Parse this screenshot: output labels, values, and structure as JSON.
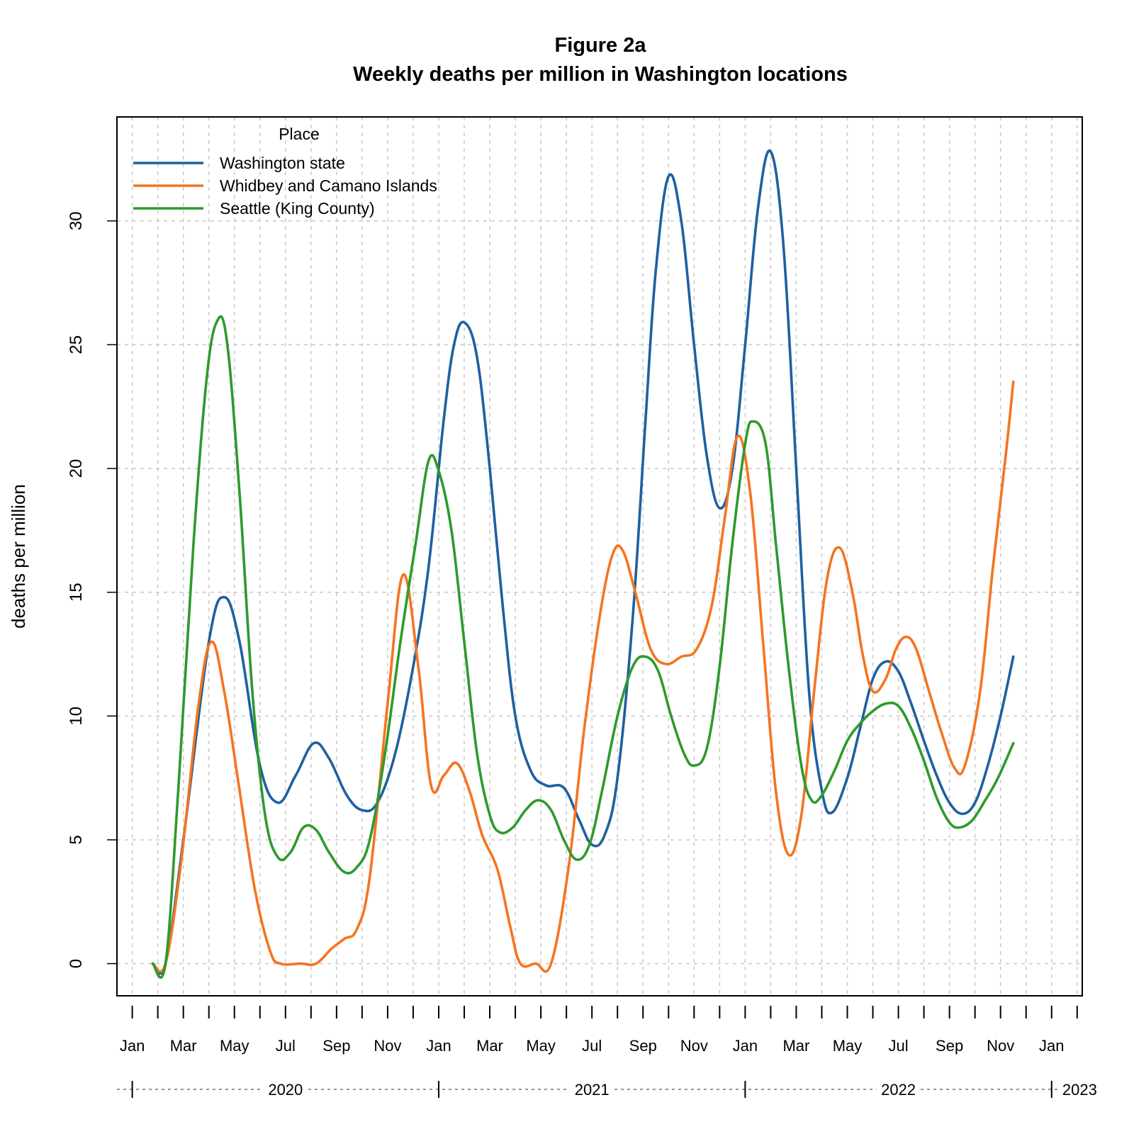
{
  "chart_data": {
    "type": "line",
    "title": "Figure 2a",
    "subtitle": "Weekly deaths per million in Washington locations",
    "xlabel": "",
    "ylabel": "deaths per million",
    "ylim": [
      -1.3,
      34.2
    ],
    "yticks": [
      0,
      5,
      10,
      15,
      20,
      25,
      30
    ],
    "x_unit": "month (0 = Jan 2020)",
    "xlim": [
      -0.6,
      37.2
    ],
    "month_ticks": [
      0,
      1,
      2,
      3,
      4,
      5,
      6,
      7,
      8,
      9,
      10,
      11,
      12,
      13,
      14,
      15,
      16,
      17,
      18,
      19,
      20,
      21,
      22,
      23,
      24,
      25,
      26,
      27,
      28,
      29,
      30,
      31,
      32,
      33,
      34,
      35,
      36,
      37
    ],
    "month_labels": [
      {
        "m": 0,
        "label": "Jan"
      },
      {
        "m": 2,
        "label": "Mar"
      },
      {
        "m": 4,
        "label": "May"
      },
      {
        "m": 6,
        "label": "Jul"
      },
      {
        "m": 8,
        "label": "Sep"
      },
      {
        "m": 10,
        "label": "Nov"
      },
      {
        "m": 12,
        "label": "Jan"
      },
      {
        "m": 14,
        "label": "Mar"
      },
      {
        "m": 16,
        "label": "May"
      },
      {
        "m": 18,
        "label": "Jul"
      },
      {
        "m": 20,
        "label": "Sep"
      },
      {
        "m": 22,
        "label": "Nov"
      },
      {
        "m": 24,
        "label": "Jan"
      },
      {
        "m": 26,
        "label": "Mar"
      },
      {
        "m": 28,
        "label": "May"
      },
      {
        "m": 30,
        "label": "Jul"
      },
      {
        "m": 32,
        "label": "Sep"
      },
      {
        "m": 34,
        "label": "Nov"
      },
      {
        "m": 36,
        "label": "Jan"
      }
    ],
    "year_labels": [
      {
        "label": "2020",
        "m": 6
      },
      {
        "label": "2021",
        "m": 18
      },
      {
        "label": "2022",
        "m": 30
      },
      {
        "label": "2023",
        "m": 37.1
      }
    ],
    "year_boundaries": [
      0,
      12,
      24,
      36
    ],
    "grid": true,
    "legend": {
      "title": "Place",
      "position": "top-left"
    },
    "series": [
      {
        "name": "Washington state",
        "color": "#1f5fa0",
        "points": [
          [
            0.8,
            0
          ],
          [
            1.3,
            0
          ],
          [
            2,
            5
          ],
          [
            3,
            13
          ],
          [
            3.6,
            14.8
          ],
          [
            4.2,
            13
          ],
          [
            5,
            8
          ],
          [
            5.7,
            6.5
          ],
          [
            6.4,
            7.6
          ],
          [
            7.1,
            8.9
          ],
          [
            7.7,
            8.3
          ],
          [
            8.4,
            6.8
          ],
          [
            9,
            6.2
          ],
          [
            9.6,
            6.5
          ],
          [
            10.3,
            8.5
          ],
          [
            11,
            12
          ],
          [
            11.6,
            16
          ],
          [
            12.2,
            22
          ],
          [
            12.6,
            25
          ],
          [
            13,
            25.9
          ],
          [
            13.5,
            24.5
          ],
          [
            14,
            20
          ],
          [
            14.5,
            14.5
          ],
          [
            15,
            10
          ],
          [
            15.6,
            7.8
          ],
          [
            16.2,
            7.2
          ],
          [
            16.9,
            7.1
          ],
          [
            17.5,
            5.8
          ],
          [
            18,
            4.8
          ],
          [
            18.5,
            5.2
          ],
          [
            19,
            7.5
          ],
          [
            19.6,
            14
          ],
          [
            20.1,
            22
          ],
          [
            20.5,
            28
          ],
          [
            21,
            31.8
          ],
          [
            21.5,
            30
          ],
          [
            22,
            25
          ],
          [
            22.5,
            20.5
          ],
          [
            23,
            18.4
          ],
          [
            23.5,
            20
          ],
          [
            24,
            25
          ],
          [
            24.5,
            30.5
          ],
          [
            25,
            32.8
          ],
          [
            25.5,
            29
          ],
          [
            26,
            20
          ],
          [
            26.5,
            11
          ],
          [
            27,
            7
          ],
          [
            27.4,
            6.1
          ],
          [
            28,
            7.5
          ],
          [
            28.5,
            9.5
          ],
          [
            29,
            11.5
          ],
          [
            29.5,
            12.2
          ],
          [
            30,
            11.8
          ],
          [
            30.5,
            10.5
          ],
          [
            31,
            9
          ],
          [
            31.5,
            7.6
          ],
          [
            32,
            6.5
          ],
          [
            32.5,
            6.05
          ],
          [
            33,
            6.5
          ],
          [
            33.5,
            8
          ],
          [
            34,
            10
          ],
          [
            34.5,
            12.4
          ]
        ]
      },
      {
        "name": "Whidbey and Camano Islands",
        "color": "#f5741f",
        "points": [
          [
            0.8,
            0
          ],
          [
            1.3,
            0
          ],
          [
            1.9,
            4
          ],
          [
            2.6,
            10.5
          ],
          [
            3.1,
            13
          ],
          [
            3.6,
            11
          ],
          [
            4.2,
            7
          ],
          [
            4.8,
            3
          ],
          [
            5.4,
            0.5
          ],
          [
            5.8,
            0
          ],
          [
            6.6,
            0
          ],
          [
            7.2,
            0
          ],
          [
            7.8,
            0.6
          ],
          [
            8.3,
            1
          ],
          [
            8.8,
            1.4
          ],
          [
            9.3,
            3.5
          ],
          [
            10,
            10.5
          ],
          [
            10.6,
            15.7
          ],
          [
            11.2,
            12
          ],
          [
            11.7,
            7.2
          ],
          [
            12.2,
            7.6
          ],
          [
            12.7,
            8.1
          ],
          [
            13.2,
            7
          ],
          [
            13.7,
            5.2
          ],
          [
            14.3,
            3.8
          ],
          [
            14.8,
            1.5
          ],
          [
            15.2,
            0
          ],
          [
            15.8,
            0
          ],
          [
            16.4,
            0
          ],
          [
            17.1,
            4
          ],
          [
            17.7,
            9.5
          ],
          [
            18.3,
            14
          ],
          [
            18.8,
            16.5
          ],
          [
            19.2,
            16.7
          ],
          [
            19.7,
            15
          ],
          [
            20.3,
            12.7
          ],
          [
            20.9,
            12.1
          ],
          [
            21.5,
            12.4
          ],
          [
            22.1,
            12.7
          ],
          [
            22.7,
            14.5
          ],
          [
            23.2,
            18
          ],
          [
            23.7,
            21.3
          ],
          [
            24.2,
            19
          ],
          [
            24.7,
            13
          ],
          [
            25.2,
            7
          ],
          [
            25.7,
            4.4
          ],
          [
            26.2,
            6
          ],
          [
            26.7,
            11
          ],
          [
            27.2,
            15.5
          ],
          [
            27.7,
            16.8
          ],
          [
            28.2,
            15
          ],
          [
            28.6,
            12.5
          ],
          [
            29,
            11
          ],
          [
            29.5,
            11.5
          ],
          [
            29.9,
            12.7
          ],
          [
            30.3,
            13.2
          ],
          [
            30.7,
            12.7
          ],
          [
            31.2,
            11
          ],
          [
            31.7,
            9.3
          ],
          [
            32.2,
            7.9
          ],
          [
            32.6,
            8
          ],
          [
            33.2,
            11
          ],
          [
            33.7,
            16
          ],
          [
            34.2,
            20.5
          ],
          [
            34.5,
            23.5
          ]
        ]
      },
      {
        "name": "Seattle (King County)",
        "color": "#2d9a2d",
        "points": [
          [
            0.8,
            0
          ],
          [
            1.3,
            0
          ],
          [
            1.8,
            7
          ],
          [
            2.4,
            17
          ],
          [
            2.9,
            23.5
          ],
          [
            3.3,
            25.9
          ],
          [
            3.7,
            25.2
          ],
          [
            4.2,
            19
          ],
          [
            4.7,
            11
          ],
          [
            5.2,
            6
          ],
          [
            5.7,
            4.3
          ],
          [
            6.2,
            4.5
          ],
          [
            6.7,
            5.5
          ],
          [
            7.2,
            5.4
          ],
          [
            7.7,
            4.5
          ],
          [
            8.3,
            3.7
          ],
          [
            8.8,
            3.9
          ],
          [
            9.3,
            5
          ],
          [
            9.9,
            8.5
          ],
          [
            10.5,
            13
          ],
          [
            11.1,
            17
          ],
          [
            11.6,
            20.3
          ],
          [
            12,
            19.9
          ],
          [
            12.5,
            17.5
          ],
          [
            13,
            13
          ],
          [
            13.5,
            8.5
          ],
          [
            14,
            6
          ],
          [
            14.4,
            5.3
          ],
          [
            14.9,
            5.5
          ],
          [
            15.4,
            6.2
          ],
          [
            15.9,
            6.6
          ],
          [
            16.4,
            6.2
          ],
          [
            16.9,
            5
          ],
          [
            17.4,
            4.2
          ],
          [
            17.9,
            4.8
          ],
          [
            18.4,
            7
          ],
          [
            19,
            10
          ],
          [
            19.6,
            12
          ],
          [
            20.1,
            12.4
          ],
          [
            20.6,
            11.8
          ],
          [
            21.1,
            10
          ],
          [
            21.6,
            8.5
          ],
          [
            22,
            8
          ],
          [
            22.5,
            8.7
          ],
          [
            23,
            12
          ],
          [
            23.5,
            17
          ],
          [
            24,
            21
          ],
          [
            24.3,
            21.9
          ],
          [
            24.8,
            21
          ],
          [
            25.2,
            17
          ],
          [
            25.7,
            12
          ],
          [
            26.2,
            8
          ],
          [
            26.6,
            6.6
          ],
          [
            27,
            6.8
          ],
          [
            27.5,
            7.8
          ],
          [
            28,
            9
          ],
          [
            28.5,
            9.7
          ],
          [
            29,
            10.2
          ],
          [
            29.5,
            10.5
          ],
          [
            30,
            10.4
          ],
          [
            30.5,
            9.5
          ],
          [
            31,
            8.2
          ],
          [
            31.5,
            6.7
          ],
          [
            32,
            5.7
          ],
          [
            32.4,
            5.5
          ],
          [
            32.9,
            5.8
          ],
          [
            33.4,
            6.6
          ],
          [
            33.9,
            7.5
          ],
          [
            34.5,
            8.9
          ]
        ]
      }
    ]
  }
}
